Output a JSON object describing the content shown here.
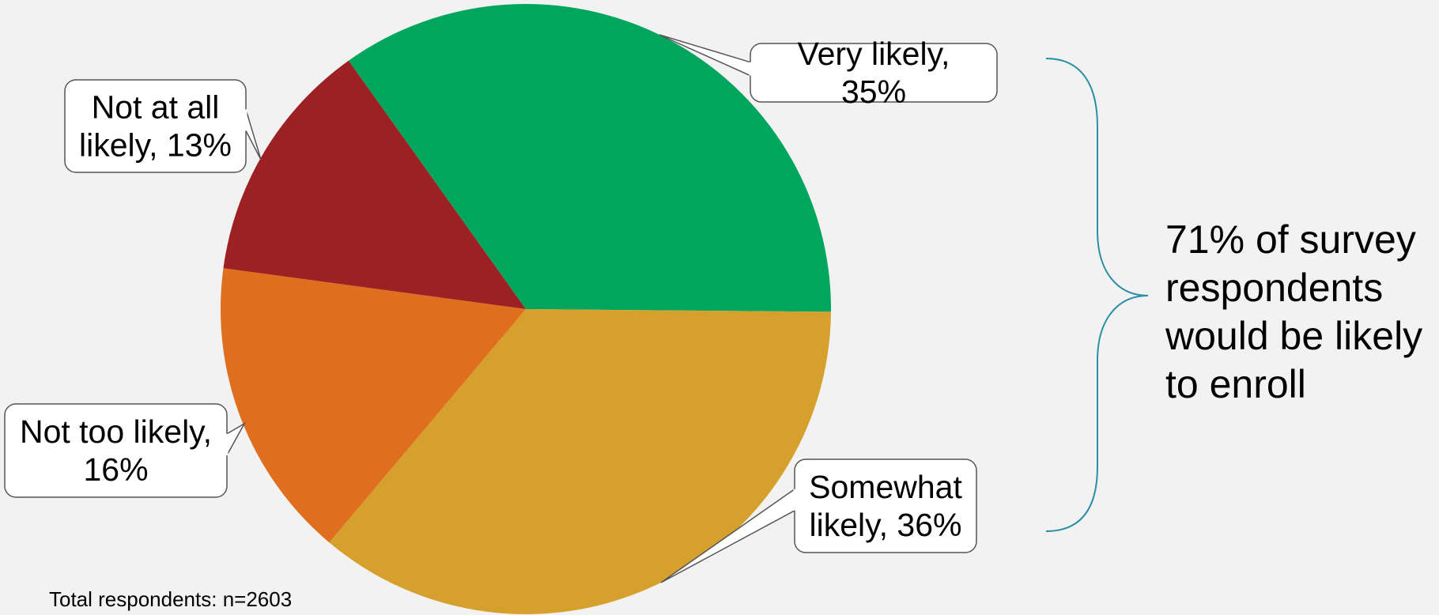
{
  "chart_data": {
    "type": "pie",
    "slices": [
      {
        "label": "Very likely",
        "value": 35,
        "color": "#00a55e",
        "callout": [
          "Very likely,",
          "35%"
        ]
      },
      {
        "label": "Somewhat likely",
        "value": 36,
        "color": "#d5a02b",
        "callout": [
          "Somewhat",
          "likely, 36%"
        ]
      },
      {
        "label": "Not too likely",
        "value": 16,
        "color": "#df6e1e",
        "callout": [
          "Not too likely,",
          "16%"
        ]
      },
      {
        "label": "Not at all likely",
        "value": 13,
        "color": "#9d2022",
        "callout": [
          "Not at all",
          "likely, 13%"
        ]
      }
    ],
    "bracket_color": "#2a8fa6",
    "summary_lines": [
      "71% of survey",
      "respondents",
      "would be likely",
      "to enroll"
    ]
  },
  "footnote": "Total respondents: n=2603"
}
